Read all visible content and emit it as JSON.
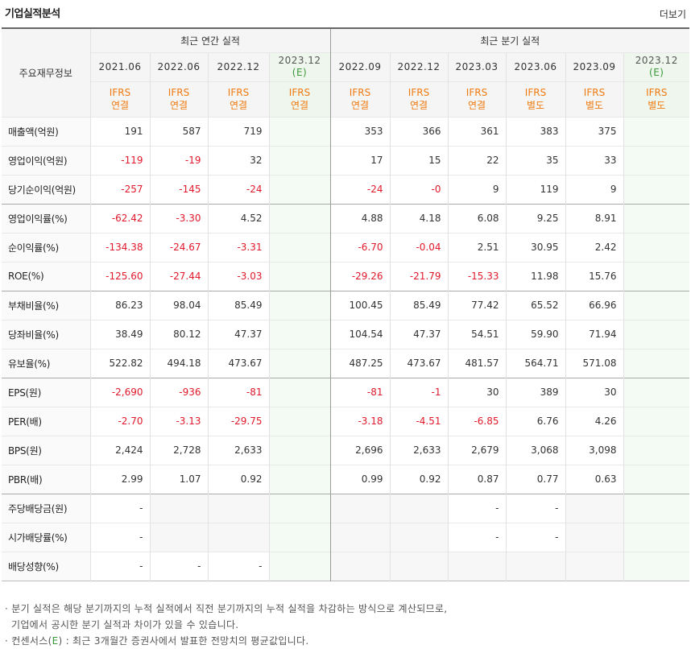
{
  "header": {
    "title": "기업실적분석",
    "more": "더보기"
  },
  "table": {
    "corner_label": "주요재무정보",
    "groups": {
      "annual": "최근 연간 실적",
      "quarterly": "최근 분기 실적"
    },
    "periods": [
      {
        "label": "2021.06",
        "est": false
      },
      {
        "label": "2022.06",
        "est": false
      },
      {
        "label": "2022.12",
        "est": false
      },
      {
        "label": "2023.12",
        "est": true,
        "est_mark": "(E)"
      },
      {
        "label": "2022.09",
        "est": false
      },
      {
        "label": "2022.12",
        "est": false
      },
      {
        "label": "2023.03",
        "est": false
      },
      {
        "label": "2023.06",
        "est": false
      },
      {
        "label": "2023.09",
        "est": false
      },
      {
        "label": "2023.12",
        "est": true,
        "est_mark": "(E)"
      }
    ],
    "standards": [
      {
        "line1": "IFRS",
        "line2": "연결"
      },
      {
        "line1": "IFRS",
        "line2": "연결"
      },
      {
        "line1": "IFRS",
        "line2": "연결"
      },
      {
        "line1": "IFRS",
        "line2": "연결"
      },
      {
        "line1": "IFRS",
        "line2": "연결"
      },
      {
        "line1": "IFRS",
        "line2": "연결"
      },
      {
        "line1": "IFRS",
        "line2": "연결"
      },
      {
        "line1": "IFRS",
        "line2": "별도"
      },
      {
        "line1": "IFRS",
        "line2": "별도"
      },
      {
        "line1": "IFRS",
        "line2": "별도"
      }
    ],
    "rows": [
      {
        "label": "매출액(억원)",
        "values": [
          "191",
          "587",
          "719",
          "",
          "353",
          "366",
          "361",
          "383",
          "375",
          ""
        ]
      },
      {
        "label": "영업이익(억원)",
        "values": [
          "-119",
          "-19",
          "32",
          "",
          "17",
          "15",
          "22",
          "35",
          "33",
          ""
        ]
      },
      {
        "label": "당기순이익(억원)",
        "values": [
          "-257",
          "-145",
          "-24",
          "",
          "-24",
          "-0",
          "9",
          "119",
          "9",
          ""
        ]
      },
      {
        "label": "영업이익률(%)",
        "values": [
          "-62.42",
          "-3.30",
          "4.52",
          "",
          "4.88",
          "4.18",
          "6.08",
          "9.25",
          "8.91",
          ""
        ]
      },
      {
        "label": "순이익률(%)",
        "values": [
          "-134.38",
          "-24.67",
          "-3.31",
          "",
          "-6.70",
          "-0.04",
          "2.51",
          "30.95",
          "2.42",
          ""
        ]
      },
      {
        "label": "ROE(%)",
        "values": [
          "-125.60",
          "-27.44",
          "-3.03",
          "",
          "-29.26",
          "-21.79",
          "-15.33",
          "11.98",
          "15.76",
          ""
        ]
      },
      {
        "label": "부채비율(%)",
        "values": [
          "86.23",
          "98.04",
          "85.49",
          "",
          "100.45",
          "85.49",
          "77.42",
          "65.52",
          "66.96",
          ""
        ]
      },
      {
        "label": "당좌비율(%)",
        "values": [
          "38.49",
          "80.12",
          "47.37",
          "",
          "104.54",
          "47.37",
          "54.51",
          "59.90",
          "71.94",
          ""
        ]
      },
      {
        "label": "유보율(%)",
        "values": [
          "522.82",
          "494.18",
          "473.67",
          "",
          "487.25",
          "473.67",
          "481.57",
          "564.71",
          "571.08",
          ""
        ]
      },
      {
        "label": "EPS(원)",
        "values": [
          "-2,690",
          "-936",
          "-81",
          "",
          "-81",
          "-1",
          "30",
          "389",
          "30",
          ""
        ]
      },
      {
        "label": "PER(배)",
        "values": [
          "-2.70",
          "-3.13",
          "-29.75",
          "",
          "-3.18",
          "-4.51",
          "-6.85",
          "6.76",
          "4.26",
          ""
        ]
      },
      {
        "label": "BPS(원)",
        "values": [
          "2,424",
          "2,728",
          "2,633",
          "",
          "2,696",
          "2,633",
          "2,679",
          "3,068",
          "3,098",
          ""
        ]
      },
      {
        "label": "PBR(배)",
        "values": [
          "2.99",
          "1.07",
          "0.92",
          "",
          "0.99",
          "0.92",
          "0.87",
          "0.77",
          "0.63",
          ""
        ]
      },
      {
        "label": "주당배당금(원)",
        "values": [
          "-",
          "",
          "",
          "",
          "",
          "",
          "-",
          "-",
          "",
          ""
        ]
      },
      {
        "label": "시가배당률(%)",
        "values": [
          "-",
          "",
          "",
          "",
          "",
          "",
          "-",
          "-",
          "",
          ""
        ]
      },
      {
        "label": "배당성향(%)",
        "values": [
          "-",
          "-",
          "-",
          "",
          "",
          "",
          "",
          "",
          "",
          ""
        ]
      }
    ]
  },
  "notes": {
    "line1": "· 분기 실적은 해당 분기까지의 누적 실적에서 직전 분기까지의 누적 실적을 차감하는 방식으로 계산되므로,",
    "line2": "기업에서 공시한 분기 실적과 차이가 있을 수 있습니다.",
    "line3_pre": "· 컨센서스(",
    "line3_e": "E",
    "line3_post": ") : 최근 3개월간 증권사에서 발표한 전망치의 평균값입니다."
  },
  "colors": {
    "negative": "#e0192b",
    "standard": "#f07a10",
    "estimate": "#3a9a3a"
  }
}
